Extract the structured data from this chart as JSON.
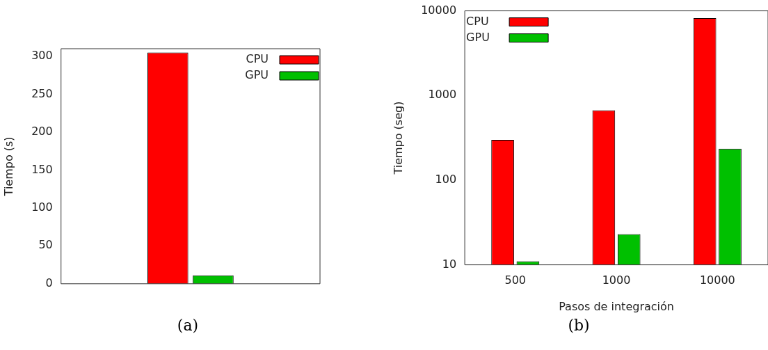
{
  "chart_data": [
    {
      "type": "bar",
      "categories": [
        null
      ],
      "ylabel": "Tiempo (s)",
      "ylim": [
        0,
        310
      ],
      "yticks": [
        0,
        50,
        100,
        150,
        200,
        250,
        300
      ],
      "legend": "top right",
      "annotations": [
        "(a)"
      ],
      "series": [
        {
          "name": "CPU",
          "color": "#ff0000",
          "values": [
            305
          ]
        },
        {
          "name": "GPU",
          "color": "#00c000",
          "values": [
            11
          ]
        }
      ]
    },
    {
      "type": "bar",
      "categories": [
        "500",
        "1000",
        "10000"
      ],
      "xlabel": "Pasos de integración",
      "ylabel": "Tiempo (seg)",
      "log": true,
      "ylim": [
        10,
        10000
      ],
      "yticks": [
        10,
        100,
        1000,
        10000
      ],
      "legend": "top left",
      "annotations": [
        "(b)"
      ],
      "series": [
        {
          "name": "CPU",
          "color": "#ff0000",
          "values": [
            300,
            670,
            8200
          ]
        },
        {
          "name": "GPU",
          "color": "#00c000",
          "values": [
            11,
            23,
            235
          ]
        }
      ]
    }
  ]
}
